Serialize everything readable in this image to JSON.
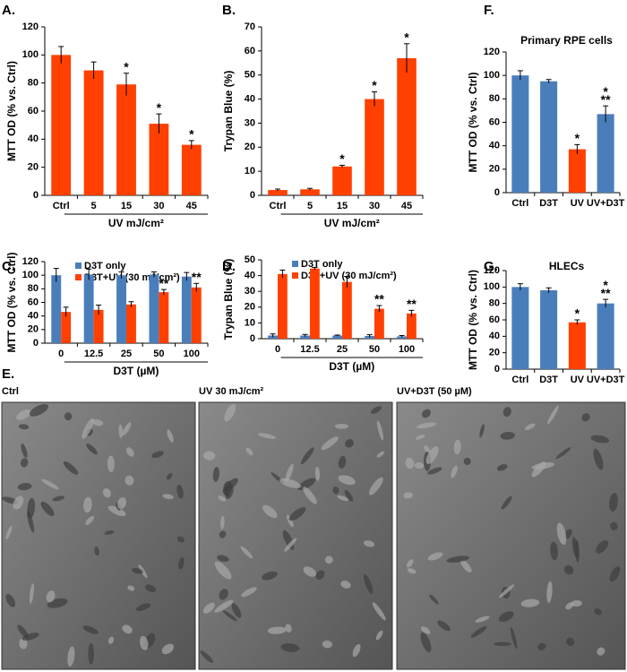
{
  "chart_data": [
    {
      "type": "bar",
      "label": "A.",
      "ylabel": "MTT OD (% vs. Ctrl)",
      "x_label": "UV mJ/cm²",
      "categories": [
        "Ctrl",
        "5",
        "15",
        "30",
        "45"
      ],
      "series": [
        {
          "color": "#ff4000",
          "values": [
            100,
            89,
            79,
            51,
            36
          ],
          "errors": [
            6,
            6,
            8,
            7,
            3
          ],
          "annotations": [
            null,
            null,
            "*",
            "*",
            "*"
          ]
        }
      ],
      "ylim": [
        0,
        120
      ],
      "yticks": [
        0,
        20,
        40,
        60,
        80,
        100,
        120
      ]
    },
    {
      "type": "bar",
      "label": "B.",
      "ylabel": "Trypan Blue (%)",
      "x_label": "UV mJ/cm²",
      "categories": [
        "Ctrl",
        "5",
        "15",
        "30",
        "45"
      ],
      "series": [
        {
          "color": "#ff4000",
          "values": [
            2.2,
            2.5,
            12,
            40,
            57
          ],
          "errors": [
            0.4,
            0.4,
            0.5,
            3,
            6
          ],
          "annotations": [
            null,
            null,
            "*",
            "*",
            "*"
          ]
        }
      ],
      "ylim": [
        0,
        70
      ],
      "yticks": [
        0,
        10,
        20,
        30,
        40,
        50,
        60,
        70
      ]
    },
    {
      "type": "bar",
      "label": "F.",
      "title": "Primary RPE cells",
      "ylabel": "MTT OD (% vs. Ctrl)",
      "categories": [
        "Ctrl",
        "D3T",
        "UV",
        "UV+D3T"
      ],
      "series": [
        {
          "colors": [
            "#4a7ebb",
            "#4a7ebb",
            "#ff4000",
            "#4a7ebb"
          ],
          "values": [
            100,
            95,
            37,
            67
          ],
          "errors": [
            4,
            1.5,
            4,
            7
          ],
          "annotations": [
            null,
            null,
            [
              "*"
            ],
            [
              "*",
              "**"
            ]
          ]
        }
      ],
      "ylim": [
        0,
        120
      ],
      "yticks": [
        0,
        20,
        40,
        60,
        80,
        100,
        120
      ]
    },
    {
      "type": "bar",
      "label": "C.",
      "ylabel": "MTT OD (% vs. Ctrl)",
      "x_label": "D3T (µM)",
      "categories": [
        "0",
        "12.5",
        "25",
        "50",
        "100"
      ],
      "series": [
        {
          "name": "D3T only",
          "color": "#4a7ebb",
          "values": [
            100,
            101,
            100,
            101,
            98
          ],
          "errors": [
            10,
            8,
            5,
            4,
            6
          ],
          "annotations": [
            null,
            null,
            null,
            null,
            null
          ]
        },
        {
          "name": "D3T+UV (30 mJ/cm²)",
          "color": "#ff4000",
          "values": [
            46,
            49,
            57,
            75,
            82
          ],
          "errors": [
            7,
            7,
            4,
            4,
            6
          ],
          "annotations": [
            null,
            null,
            null,
            "**",
            "**"
          ]
        }
      ],
      "ylim": [
        0,
        120
      ],
      "yticks": [
        0,
        20,
        40,
        60,
        80,
        100,
        120
      ]
    },
    {
      "type": "bar",
      "label": "D.",
      "ylabel": "Trypan Blue (%)",
      "x_label": "D3T (µM)",
      "categories": [
        "0",
        "12.5",
        "25",
        "50",
        "100"
      ],
      "series": [
        {
          "name": "D3T only",
          "color": "#4a7ebb",
          "values": [
            2,
            2,
            2,
            1.7,
            1.5
          ],
          "errors": [
            1,
            0.7,
            0.3,
            0.8,
            0.5
          ],
          "annotations": [
            null,
            null,
            null,
            null,
            null
          ]
        },
        {
          "name": "D3T+UV (30 mJ/cm²)",
          "color": "#ff4000",
          "values": [
            41,
            44.5,
            36,
            19,
            16
          ],
          "errors": [
            2.5,
            0.7,
            3.5,
            2,
            2
          ],
          "annotations": [
            null,
            null,
            null,
            "**",
            "**"
          ]
        }
      ],
      "ylim": [
        0,
        50
      ],
      "yticks": [
        0,
        10,
        20,
        30,
        40,
        50
      ]
    },
    {
      "type": "bar",
      "label": "G.",
      "title": "HLECs",
      "ylabel": "MTT OD (% vs. Ctrl)",
      "categories": [
        "Ctrl",
        "D3T",
        "UV",
        "UV+D3T"
      ],
      "series": [
        {
          "colors": [
            "#4a7ebb",
            "#4a7ebb",
            "#ff4000",
            "#4a7ebb"
          ],
          "values": [
            100,
            96,
            57,
            80
          ],
          "errors": [
            4,
            3,
            3,
            5
          ],
          "annotations": [
            null,
            null,
            [
              "*"
            ],
            [
              "*",
              "**"
            ]
          ]
        }
      ],
      "ylim": [
        0,
        120
      ],
      "yticks": [
        0,
        20,
        40,
        60,
        80,
        100,
        120
      ]
    }
  ],
  "panel_e": {
    "label": "E.",
    "images": [
      {
        "caption": "Ctrl"
      },
      {
        "caption": "UV 30 mJ/cm²"
      },
      {
        "caption": "UV+D3T (50 µM)"
      }
    ]
  }
}
